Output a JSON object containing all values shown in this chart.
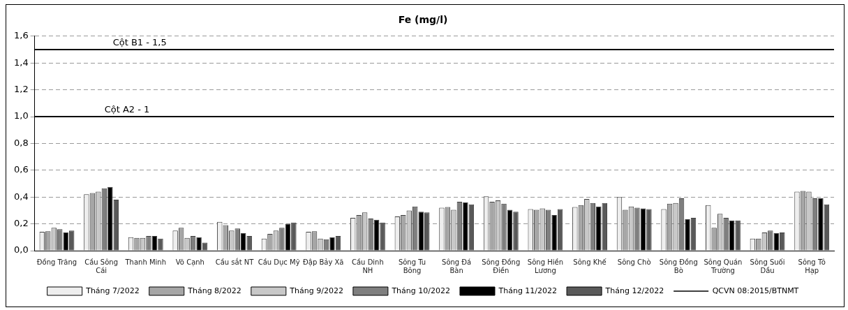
{
  "chart_data": {
    "type": "bar",
    "title": "Fe (mg/l)",
    "categories": [
      "Đồng Trăng",
      "Cầu Sông Cái",
      "Thanh Minh",
      "Võ Cạnh",
      "Cầu sắt NT",
      "Cầu Dục Mỹ",
      "Đập Bảy Xã",
      "Cầu Dinh NH",
      "Sông Tu Bông",
      "Sông Đá Bàn",
      "Sông Đồng Điền",
      "Sông Hiền Lương",
      "Sông Khế",
      "Sông Chò",
      "Sông Đồng Bò",
      "Sông Quán Trường",
      "Sông Suối Dầu",
      "Sông Tô Hạp"
    ],
    "series": [
      {
        "name": "Tháng 7/2022",
        "color": "#eeeeee",
        "values": [
          0.14,
          0.42,
          0.1,
          0.15,
          0.215,
          0.09,
          0.14,
          0.245,
          0.255,
          0.32,
          0.405,
          0.31,
          0.325,
          0.4,
          0.31,
          0.34,
          0.09,
          0.44
        ]
      },
      {
        "name": "Tháng 8/2022",
        "color": "#a6a6a6",
        "values": [
          0.145,
          0.43,
          0.095,
          0.17,
          0.19,
          0.125,
          0.145,
          0.265,
          0.265,
          0.325,
          0.365,
          0.305,
          0.34,
          0.305,
          0.35,
          0.17,
          0.09,
          0.445
        ]
      },
      {
        "name": "Tháng 9/2022",
        "color": "#c8c8c8",
        "values": [
          0.17,
          0.44,
          0.095,
          0.095,
          0.15,
          0.15,
          0.09,
          0.285,
          0.3,
          0.305,
          0.375,
          0.315,
          0.385,
          0.33,
          0.355,
          0.275,
          0.135,
          0.44
        ]
      },
      {
        "name": "Tháng 10/2022",
        "color": "#7f7f7f",
        "values": [
          0.16,
          0.465,
          0.11,
          0.11,
          0.165,
          0.17,
          0.085,
          0.24,
          0.33,
          0.365,
          0.35,
          0.305,
          0.355,
          0.32,
          0.39,
          0.245,
          0.15,
          0.39
        ]
      },
      {
        "name": "Tháng 11/2022",
        "color": "#000000",
        "values": [
          0.135,
          0.475,
          0.11,
          0.1,
          0.13,
          0.2,
          0.1,
          0.23,
          0.29,
          0.36,
          0.305,
          0.265,
          0.33,
          0.315,
          0.235,
          0.225,
          0.13,
          0.39
        ]
      },
      {
        "name": "Tháng 12/2022",
        "color": "#595959",
        "values": [
          0.15,
          0.38,
          0.09,
          0.06,
          0.11,
          0.21,
          0.11,
          0.21,
          0.285,
          0.345,
          0.29,
          0.31,
          0.355,
          0.31,
          0.245,
          0.225,
          0.135,
          0.345
        ]
      }
    ],
    "ylim": [
      0,
      1.6
    ],
    "yticks": [
      {
        "value": 0,
        "label": "0,0"
      },
      {
        "value": 0.2,
        "label": "0,2"
      },
      {
        "value": 0.4,
        "label": "0,4"
      },
      {
        "value": 0.6,
        "label": "0,6"
      },
      {
        "value": 0.8,
        "label": "0,8"
      },
      {
        "value": 1,
        "label": "1,0"
      },
      {
        "value": 1.2,
        "label": "1,2"
      },
      {
        "value": 1.4,
        "label": "1,4"
      },
      {
        "value": 1.6,
        "label": "1,6"
      }
    ],
    "grid": "y",
    "legend": "bottom",
    "ref_lines": [
      {
        "axis": "y",
        "value": 1.5,
        "label": "Cột B1 - 1,5",
        "color": "#000000"
      },
      {
        "axis": "y",
        "value": 1,
        "label": "Cột A2 - 1",
        "color": "#000000"
      }
    ],
    "annotations": [
      "QCVN 08:2015/BTNMT"
    ]
  }
}
